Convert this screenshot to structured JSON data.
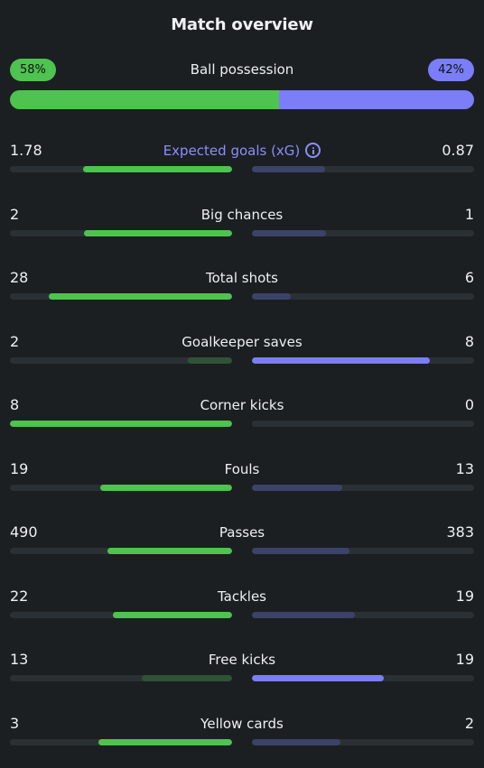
{
  "title": "Match overview",
  "colors": {
    "home": "#4ec34f",
    "home_dim": "#2f5336",
    "away": "#7b7ef8",
    "away_dim": "#3c4368",
    "track": "#2b3034",
    "background": "#1b1f22"
  },
  "possession": {
    "label": "Ball possession",
    "home_text": "58%",
    "away_text": "42%",
    "home": 58,
    "away": 42
  },
  "stats": [
    {
      "label": "Expected goals (xG)",
      "home_text": "1.78",
      "away_text": "0.87",
      "home": 1.78,
      "away": 0.87,
      "highlight": true,
      "icon": "info-icon"
    },
    {
      "label": "Big chances",
      "home_text": "2",
      "away_text": "1",
      "home": 2,
      "away": 1
    },
    {
      "label": "Total shots",
      "home_text": "28",
      "away_text": "6",
      "home": 28,
      "away": 6
    },
    {
      "label": "Goalkeeper saves",
      "home_text": "2",
      "away_text": "8",
      "home": 2,
      "away": 8
    },
    {
      "label": "Corner kicks",
      "home_text": "8",
      "away_text": "0",
      "home": 8,
      "away": 0
    },
    {
      "label": "Fouls",
      "home_text": "19",
      "away_text": "13",
      "home": 19,
      "away": 13
    },
    {
      "label": "Passes",
      "home_text": "490",
      "away_text": "383",
      "home": 490,
      "away": 383
    },
    {
      "label": "Tackles",
      "home_text": "22",
      "away_text": "19",
      "home": 22,
      "away": 19
    },
    {
      "label": "Free kicks",
      "home_text": "13",
      "away_text": "19",
      "home": 13,
      "away": 19
    },
    {
      "label": "Yellow cards",
      "home_text": "3",
      "away_text": "2",
      "home": 3,
      "away": 2
    }
  ]
}
